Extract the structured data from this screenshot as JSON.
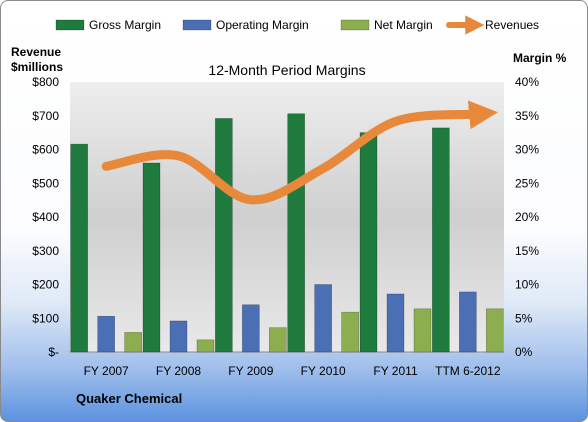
{
  "chart_data": {
    "type": "bar",
    "title": "12-Month Period Margins",
    "company": "Quaker Chemical",
    "categories": [
      "FY 2007",
      "FY 2008",
      "FY 2009",
      "FY 2010",
      "FY 2011",
      "TTM 6-2012"
    ],
    "left_axis": {
      "label_line1": "Revenue",
      "label_line2": "$millions",
      "ylim": [
        0,
        800
      ],
      "ticks": [
        "$-",
        "$100",
        "$200",
        "$300",
        "$400",
        "$500",
        "$600",
        "$700",
        "$800"
      ]
    },
    "right_axis": {
      "label": "Margin %",
      "ylim": [
        0,
        40
      ],
      "ticks": [
        "0%",
        "5%",
        "10%",
        "15%",
        "20%",
        "25%",
        "30%",
        "35%",
        "40%"
      ]
    },
    "series": [
      {
        "name": "Gross Margin",
        "axis": "right",
        "color": "#1f7a3e",
        "values": [
          30.8,
          28.0,
          34.6,
          35.3,
          32.5,
          33.2
        ]
      },
      {
        "name": "Operating Margin",
        "axis": "right",
        "color": "#4a6fb5",
        "values": [
          5.3,
          4.6,
          7.0,
          10.0,
          8.6,
          8.9
        ]
      },
      {
        "name": "Net Margin",
        "axis": "right",
        "color": "#8cae4f",
        "values": [
          2.9,
          1.8,
          3.6,
          5.9,
          6.4,
          6.4
        ]
      },
      {
        "name": "Revenues",
        "axis": "left",
        "color": "#e8883a",
        "type": "line",
        "values": [
          550,
          581,
          451,
          544,
          683,
          705
        ]
      }
    ],
    "legend_position": "top",
    "grid": false
  }
}
